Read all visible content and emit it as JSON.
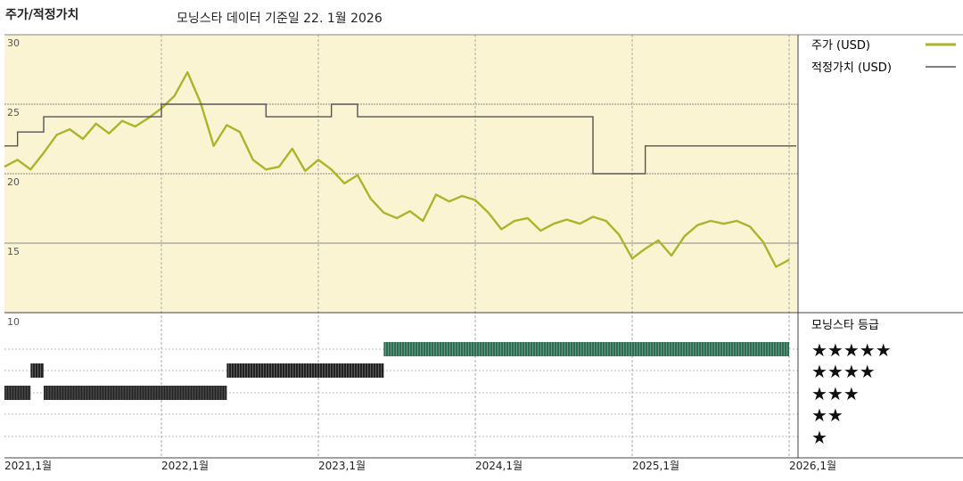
{
  "header": {
    "title": "주가/적정가치",
    "subtitle": "모닝스타 데이터 기준일 22. 1월 2026"
  },
  "legend": {
    "price": "주가 (USD)",
    "fair_value": "적정가치 (USD)",
    "rating_title": "모닝스타 등급"
  },
  "colors": {
    "price_line": "#a9b52b",
    "fair_value_line": "#555555",
    "upper_bg": "#faf4d3",
    "five_star_bars": "#2e6e55",
    "star_bars": "#222222"
  },
  "chart_data": {
    "type": "line",
    "title": "주가/적정가치",
    "y_ticks": [
      "30",
      "25",
      "20",
      "15"
    ],
    "ylim": [
      10,
      30
    ],
    "x_ticks": [
      "2021,1월",
      "2022,1월",
      "2023,1월",
      "2024,1월",
      "2025,1월",
      "2026,1월"
    ],
    "xlim": [
      "2021-01",
      "2026-01"
    ],
    "series": [
      {
        "name": "주가 (USD)",
        "x": [
          "2021-01",
          "2021-02",
          "2021-03",
          "2021-04",
          "2021-05",
          "2021-06",
          "2021-07",
          "2021-08",
          "2021-09",
          "2021-10",
          "2021-11",
          "2021-12",
          "2022-01",
          "2022-02",
          "2022-03",
          "2022-04",
          "2022-05",
          "2022-06",
          "2022-07",
          "2022-08",
          "2022-09",
          "2022-10",
          "2022-11",
          "2022-12",
          "2023-01",
          "2023-02",
          "2023-03",
          "2023-04",
          "2023-05",
          "2023-06",
          "2023-07",
          "2023-08",
          "2023-09",
          "2023-10",
          "2023-11",
          "2023-12",
          "2024-01",
          "2024-02",
          "2024-03",
          "2024-04",
          "2024-05",
          "2024-06",
          "2024-07",
          "2024-08",
          "2024-09",
          "2024-10",
          "2024-11",
          "2024-12",
          "2025-01",
          "2025-02",
          "2025-03",
          "2025-04",
          "2025-05",
          "2025-06",
          "2025-07",
          "2025-08",
          "2025-09",
          "2025-10",
          "2025-11",
          "2025-12",
          "2026-01"
        ],
        "values": [
          20.5,
          21.0,
          20.3,
          21.5,
          22.8,
          23.2,
          22.5,
          23.6,
          22.9,
          23.8,
          23.4,
          24.0,
          24.7,
          25.6,
          27.3,
          25.1,
          22.0,
          23.5,
          23.0,
          21.0,
          20.3,
          20.5,
          21.8,
          20.2,
          21.0,
          20.3,
          19.3,
          19.9,
          18.2,
          17.2,
          16.8,
          17.3,
          16.6,
          18.5,
          18.0,
          18.4,
          18.1,
          17.2,
          16.0,
          16.6,
          16.8,
          15.9,
          16.4,
          16.7,
          16.4,
          16.9,
          16.6,
          15.6,
          13.9,
          14.6,
          15.2,
          14.1,
          15.5,
          16.3,
          16.6,
          16.4,
          16.6,
          16.2,
          15.1,
          13.3,
          13.8
        ]
      },
      {
        "name": "적정가치 (USD)",
        "type": "step",
        "x": [
          "2021-01",
          "2021-02",
          "2021-04",
          "2022-01",
          "2022-09",
          "2023-02",
          "2023-04",
          "2024-01",
          "2024-10",
          "2025-02",
          "2026-01"
        ],
        "values": [
          22.0,
          23.0,
          24.1,
          25.0,
          24.1,
          25.0,
          24.1,
          24.1,
          20.0,
          22.0,
          22.0
        ]
      }
    ],
    "rating_panel": {
      "title": "모닝스타 등급",
      "scale_label": "10",
      "levels": [
        "★★★★★",
        "★★★★",
        "★★★",
        "★★",
        "★"
      ],
      "periods": [
        {
          "from": "2021-01",
          "to": "2021-03",
          "stars": 3
        },
        {
          "from": "2021-03",
          "to": "2021-04",
          "stars": 4
        },
        {
          "from": "2021-04",
          "to": "2022-06",
          "stars": 3
        },
        {
          "from": "2022-06",
          "to": "2023-06",
          "stars": 4
        },
        {
          "from": "2023-06",
          "to": "2026-01",
          "stars": 5
        }
      ]
    }
  }
}
